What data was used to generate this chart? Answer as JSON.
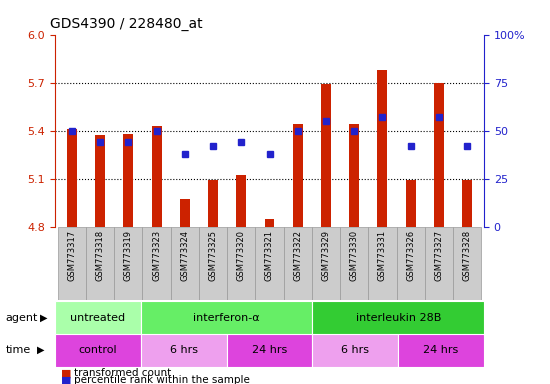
{
  "title": "GDS4390 / 228480_at",
  "samples": [
    "GSM773317",
    "GSM773318",
    "GSM773319",
    "GSM773323",
    "GSM773324",
    "GSM773325",
    "GSM773320",
    "GSM773321",
    "GSM773322",
    "GSM773329",
    "GSM773330",
    "GSM773331",
    "GSM773326",
    "GSM773327",
    "GSM773328"
  ],
  "red_values": [
    5.41,
    5.37,
    5.38,
    5.43,
    4.97,
    5.09,
    5.12,
    4.85,
    5.44,
    5.69,
    5.44,
    5.78,
    5.09,
    5.7,
    5.09
  ],
  "blue_values": [
    50,
    44,
    44,
    50,
    38,
    42,
    44,
    38,
    50,
    55,
    50,
    57,
    42,
    57,
    42
  ],
  "ylim": [
    4.8,
    6.0
  ],
  "yticks_left": [
    4.8,
    5.1,
    5.4,
    5.7,
    6.0
  ],
  "yticks_right": [
    0,
    25,
    50,
    75,
    100
  ],
  "bar_color": "#cc2200",
  "dot_color": "#2222cc",
  "agent_groups": [
    {
      "label": "untreated",
      "start": 0,
      "end": 3,
      "color": "#aaffaa"
    },
    {
      "label": "interferon-α",
      "start": 3,
      "end": 9,
      "color": "#66ee66"
    },
    {
      "label": "interleukin 28B",
      "start": 9,
      "end": 15,
      "color": "#33cc33"
    }
  ],
  "time_groups": [
    {
      "label": "control",
      "start": 0,
      "end": 3,
      "color": "#dd44dd"
    },
    {
      "label": "6 hrs",
      "start": 3,
      "end": 6,
      "color": "#eea0ee"
    },
    {
      "label": "24 hrs",
      "start": 6,
      "end": 9,
      "color": "#dd44dd"
    },
    {
      "label": "6 hrs",
      "start": 9,
      "end": 12,
      "color": "#eea0ee"
    },
    {
      "label": "24 hrs",
      "start": 12,
      "end": 15,
      "color": "#dd44dd"
    }
  ],
  "legend": [
    {
      "label": "transformed count",
      "color": "#cc2200"
    },
    {
      "label": "percentile rank within the sample",
      "color": "#2222cc"
    }
  ],
  "dotted_lines": [
    5.1,
    5.4,
    5.7
  ],
  "plot_bg": "#ffffff",
  "label_bg": "#cccccc",
  "label_edge": "#999999"
}
